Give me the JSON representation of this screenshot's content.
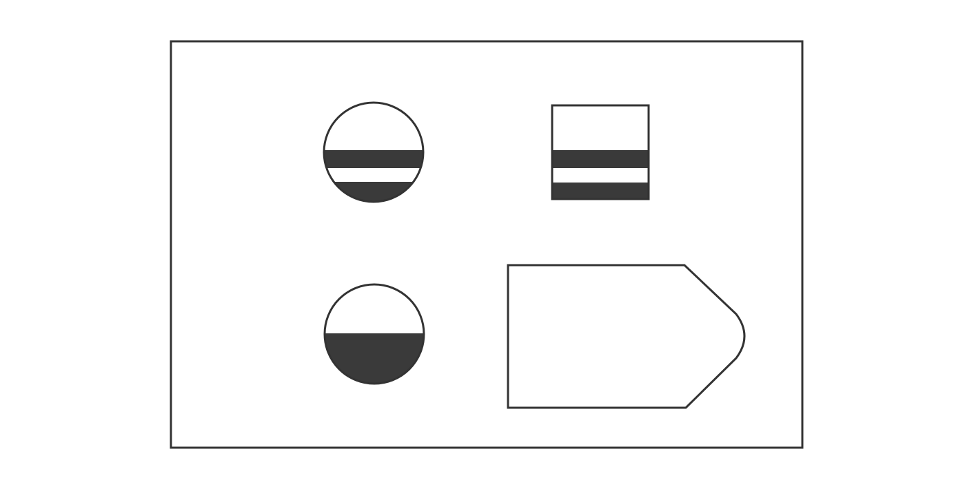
{
  "diagram": {
    "colors": {
      "background": "#ffffff",
      "stroke": "#333333",
      "fill_dark": "#3a3a3a",
      "fill_light": "#ffffff"
    },
    "symbols": [
      {
        "name": "circle-with-two-horizontal-bands"
      },
      {
        "name": "square-with-two-horizontal-bands"
      },
      {
        "name": "circle-with-lower-half-filled"
      },
      {
        "name": "pentagon-pointer-shape"
      }
    ]
  }
}
